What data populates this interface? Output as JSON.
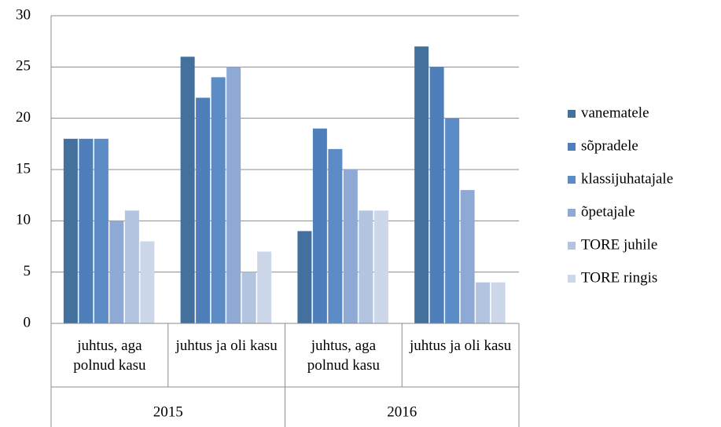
{
  "chart_data": {
    "type": "bar",
    "categories": [
      "juhtus, aga polnud kasu",
      "juhtus ja oli kasu",
      "juhtus, aga polnud kasu",
      "juhtus ja oli kasu"
    ],
    "groups": [
      "2015",
      "2016"
    ],
    "series": [
      {
        "name": "vanematele",
        "color": "#44709e",
        "values": [
          18,
          26,
          9,
          27
        ]
      },
      {
        "name": "sõpradele",
        "color": "#4e7fba",
        "values": [
          18,
          22,
          19,
          25
        ]
      },
      {
        "name": "klassijuhatajale",
        "color": "#5b8cc6",
        "values": [
          18,
          24,
          17,
          20
        ]
      },
      {
        "name": "õpetajale",
        "color": "#8ea9d4",
        "values": [
          10,
          25,
          15,
          13
        ]
      },
      {
        "name": "TORE juhile",
        "color": "#b2c4df",
        "values": [
          11,
          5,
          11,
          4
        ]
      },
      {
        "name": "TORE ringis",
        "color": "#ccd7e9",
        "values": [
          8,
          7,
          11,
          4
        ]
      }
    ],
    "ylim": [
      0,
      30
    ],
    "yticks": [
      0,
      5,
      10,
      15,
      20,
      25,
      30
    ],
    "grid": true,
    "legend": "right"
  }
}
